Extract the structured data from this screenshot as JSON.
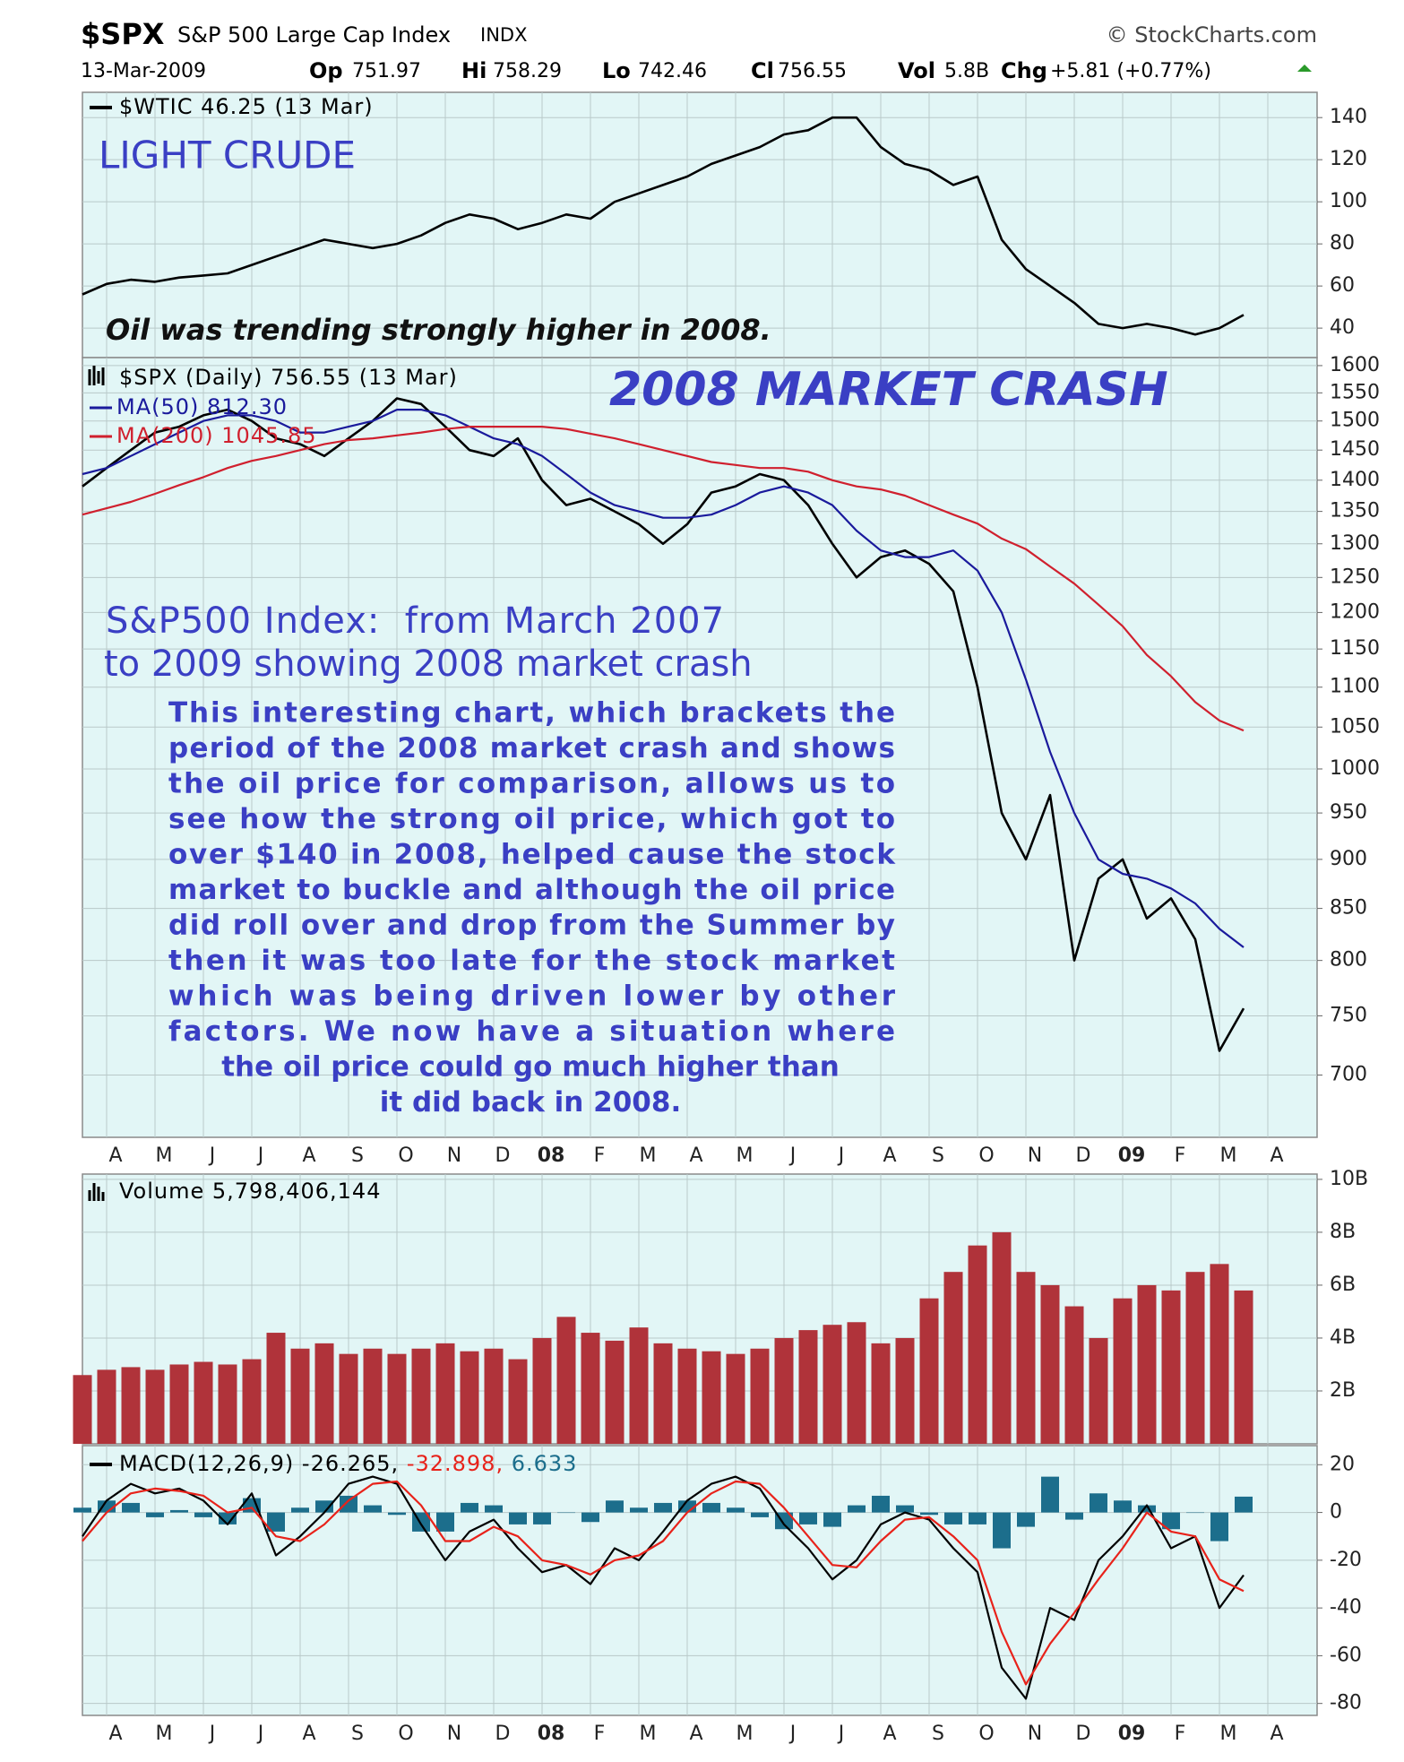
{
  "header": {
    "symbol": "$SPX",
    "name": "S&P 500 Large Cap Index",
    "exchange": "INDX",
    "source": "© StockCharts.com",
    "date": "13-Mar-2009",
    "stats": [
      {
        "label": "Op",
        "value": 751.97
      },
      {
        "label": "Hi",
        "value": 758.29
      },
      {
        "label": "Lo",
        "value": 742.46
      },
      {
        "label": "Cl",
        "value": 756.55
      },
      {
        "label": "Vol",
        "value": "5.8B"
      },
      {
        "label": "Chg",
        "value": "+5.81 (+0.77%)"
      }
    ]
  },
  "chart_data": [
    {
      "type": "line",
      "grid": true,
      "ylim": [
        26,
        152
      ],
      "yticks": [
        40,
        60,
        80,
        100,
        120,
        140
      ],
      "annotations": [
        "LIGHT CRUDE",
        "Oil was trending strongly higher in 2008."
      ],
      "series": [
        {
          "name": "$WTIC 46.25 (13 Mar)",
          "color": "#000000",
          "values": [
            56,
            61,
            63,
            62,
            64,
            65,
            66,
            70,
            74,
            78,
            82,
            80,
            78,
            80,
            84,
            90,
            94,
            92,
            87,
            90,
            94,
            92,
            100,
            104,
            108,
            112,
            118,
            122,
            126,
            132,
            134,
            140,
            140,
            126,
            118,
            115,
            108,
            112,
            82,
            68,
            60,
            52,
            42,
            40,
            42,
            40,
            37,
            40,
            46.25,
            null,
            null
          ]
        }
      ]
    },
    {
      "type": "line",
      "grid": true,
      "log": true,
      "ylim": [
        651,
        1615
      ],
      "yticks": [
        700,
        750,
        800,
        850,
        900,
        950,
        1000,
        1050,
        1100,
        1150,
        1200,
        1250,
        1300,
        1350,
        1400,
        1450,
        1500,
        1550,
        1600
      ],
      "categories": [
        null,
        "A",
        null,
        "M",
        null,
        "J",
        null,
        "J",
        null,
        "A",
        null,
        "S",
        null,
        "O",
        null,
        "N",
        null,
        "D",
        null,
        "08",
        null,
        "F",
        null,
        "M",
        null,
        "A",
        null,
        "M",
        null,
        "J",
        null,
        "J",
        null,
        "A",
        null,
        "S",
        null,
        "O",
        null,
        "N",
        null,
        "D",
        null,
        "09",
        null,
        "F",
        null,
        "M",
        null,
        "A",
        null
      ],
      "annotations": [
        "2008 MARKET CRASH",
        "S&P500 Index:  from March 2007",
        "to 2009 showing 2008 market crash"
      ],
      "note_lines": [
        "This interesting chart, which brackets the",
        "period of the 2008 market crash and shows",
        "the oil price for comparison, allows us to",
        "see how the strong oil price, which got to",
        "over $140 in 2008, helped cause the stock",
        "market to buckle and although the oil price",
        "did roll over and drop from the Summer by",
        "then it was too late for the stock market",
        "which was being driven lower by other",
        "factors. We now have a situation where",
        "the oil price could go much higher than",
        "it did back in 2008."
      ],
      "series": [
        {
          "name": "$SPX (Daily) 756.55 (13 Mar)",
          "color": "#000000",
          "values": [
            1390,
            1420,
            1450,
            1480,
            1490,
            1510,
            1520,
            1500,
            1470,
            1460,
            1440,
            1470,
            1500,
            1540,
            1530,
            1490,
            1450,
            1440,
            1470,
            1400,
            1360,
            1370,
            1350,
            1330,
            1300,
            1330,
            1380,
            1390,
            1410,
            1400,
            1360,
            1300,
            1250,
            1280,
            1290,
            1270,
            1230,
            1100,
            950,
            900,
            970,
            800,
            880,
            900,
            840,
            860,
            820,
            720,
            756.55,
            null,
            null
          ]
        },
        {
          "name": "MA(50) 812.30",
          "color": "#1a1a9c",
          "values": [
            1410,
            1420,
            1440,
            1460,
            1480,
            1500,
            1510,
            1510,
            1500,
            1480,
            1480,
            1490,
            1500,
            1520,
            1520,
            1510,
            1490,
            1470,
            1460,
            1440,
            1410,
            1380,
            1360,
            1350,
            1340,
            1340,
            1345,
            1360,
            1380,
            1390,
            1380,
            1360,
            1320,
            1290,
            1280,
            1280,
            1290,
            1260,
            1200,
            1110,
            1020,
            950,
            900,
            885,
            880,
            870,
            855,
            830,
            812.3,
            null,
            null
          ]
        },
        {
          "name": "MA(200) 1045.85",
          "color": "#d0202e",
          "values": [
            1345,
            1355,
            1365,
            1378,
            1392,
            1405,
            1420,
            1432,
            1440,
            1450,
            1460,
            1467,
            1470,
            1475,
            1480,
            1486,
            1490,
            1490,
            1490,
            1490,
            1486,
            1478,
            1470,
            1460,
            1450,
            1440,
            1430,
            1425,
            1420,
            1420,
            1414,
            1400,
            1390,
            1385,
            1375,
            1360,
            1345,
            1331,
            1308,
            1292,
            1266,
            1241,
            1211,
            1181,
            1142,
            1114,
            1081,
            1058,
            1045.85,
            null,
            null
          ]
        }
      ]
    },
    {
      "type": "bar",
      "grid": true,
      "ylim": [
        0,
        10200000000
      ],
      "yticks": [
        {
          "value": 2000000000,
          "label": "2B"
        },
        {
          "value": 4000000000,
          "label": "4B"
        },
        {
          "value": 6000000000,
          "label": "6B"
        },
        {
          "value": 8000000000,
          "label": "8B"
        },
        {
          "value": 10000000000,
          "label": "10B"
        }
      ],
      "series": [
        {
          "name": "Volume 5,798,406,144",
          "color": "#b0333a",
          "values": [
            2600000000,
            2800000000,
            2900000000,
            2800000000,
            3000000000,
            3100000000,
            3000000000,
            3200000000,
            4200000000,
            3600000000,
            3800000000,
            3400000000,
            3600000000,
            3400000000,
            3600000000,
            3800000000,
            3500000000,
            3600000000,
            3200000000,
            4000000000,
            4800000000,
            4200000000,
            3900000000,
            4400000000,
            3800000000,
            3600000000,
            3500000000,
            3400000000,
            3600000000,
            4000000000,
            4300000000,
            4500000000,
            4600000000,
            3800000000,
            4000000000,
            5500000000,
            6500000000,
            7500000000,
            8000000000,
            6500000000,
            6000000000,
            5200000000,
            4000000000,
            5500000000,
            6000000000,
            5800000000,
            6500000000,
            6800000000,
            5798406144,
            null,
            null
          ]
        }
      ]
    },
    {
      "type": "line",
      "grid": true,
      "ylim": [
        -85,
        28
      ],
      "yticks": [
        -80,
        -60,
        -40,
        -20,
        0,
        20
      ],
      "categories": [
        null,
        "A",
        null,
        "M",
        null,
        "J",
        null,
        "J",
        null,
        "A",
        null,
        "S",
        null,
        "O",
        null,
        "N",
        null,
        "D",
        null,
        "08",
        null,
        "F",
        null,
        "M",
        null,
        "A",
        null,
        "M",
        null,
        "J",
        null,
        "J",
        null,
        "A",
        null,
        "S",
        null,
        "O",
        null,
        "N",
        null,
        "D",
        null,
        "09",
        null,
        "F",
        null,
        "M",
        null,
        "A",
        null
      ],
      "series": [
        {
          "name": "6.633",
          "color": "#1c6e8c",
          "type": "bar",
          "values": [
            2,
            5,
            4,
            -2,
            1,
            -2,
            -5,
            6,
            -8,
            2,
            5,
            7,
            3,
            -1,
            -8,
            -8,
            4,
            3,
            -5,
            -5,
            0,
            -4,
            5,
            2,
            4,
            5,
            4,
            2,
            -2,
            -7,
            -5,
            -6,
            3,
            7,
            3,
            -1,
            -5,
            -5,
            -15,
            -6,
            15,
            -3,
            8,
            5,
            3,
            -7,
            0,
            -12,
            6.633,
            null,
            null
          ]
        },
        {
          "name": "MACD(12,26,9) -26.265,",
          "color": "#000000",
          "values": [
            -10,
            5,
            12,
            8,
            10,
            5,
            -5,
            8,
            -18,
            -10,
            0,
            12,
            15,
            12,
            -5,
            -20,
            -8,
            -3,
            -15,
            -25,
            -22,
            -30,
            -15,
            -20,
            -8,
            5,
            12,
            15,
            10,
            -5,
            -15,
            -28,
            -20,
            -5,
            0,
            -3,
            -15,
            -25,
            -65,
            -78,
            -40,
            -45,
            -20,
            -10,
            3,
            -15,
            -10,
            -40,
            -26.265,
            null,
            null
          ]
        },
        {
          "name": "-32.898,",
          "color": "#e8221a",
          "values": [
            -12,
            0,
            8,
            10,
            9,
            7,
            0,
            2,
            -10,
            -12,
            -5,
            5,
            12,
            13,
            3,
            -12,
            -12,
            -6,
            -10,
            -20,
            -22,
            -26,
            -20,
            -18,
            -12,
            0,
            8,
            13,
            12,
            2,
            -10,
            -22,
            -23,
            -12,
            -3,
            -2,
            -10,
            -20,
            -50,
            -72,
            -55,
            -42,
            -28,
            -15,
            0,
            -8,
            -10,
            -28,
            -32.898,
            null,
            null
          ]
        }
      ]
    }
  ]
}
